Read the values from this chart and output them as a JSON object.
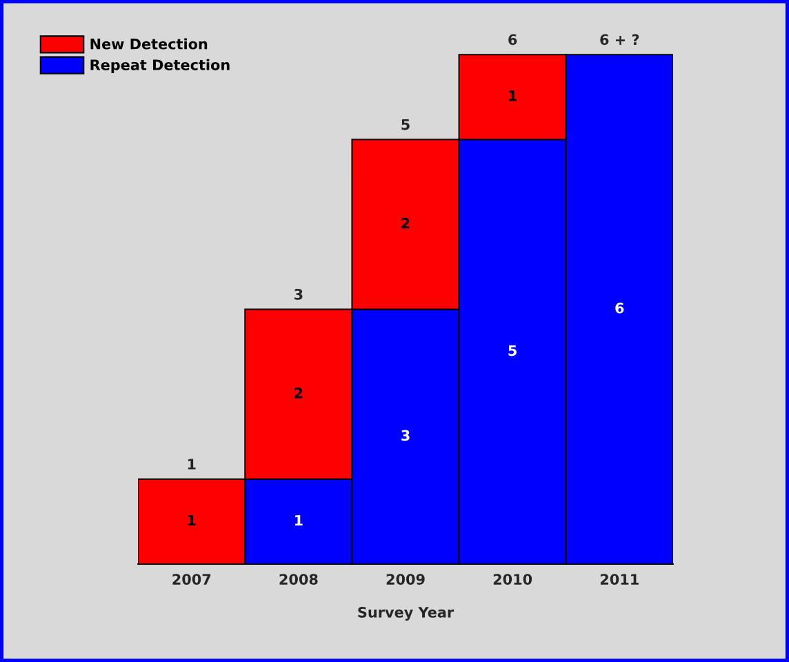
{
  "chart_data": {
    "type": "bar",
    "stacked": true,
    "xlabel": "Survey Year",
    "categories": [
      "2007",
      "2008",
      "2009",
      "2010",
      "2011"
    ],
    "series": [
      {
        "name": "Repeat Detection",
        "color": "#0000ff",
        "values": [
          0,
          1,
          3,
          5,
          6
        ],
        "value_labels": [
          null,
          "1",
          "3",
          "5",
          "6"
        ]
      },
      {
        "name": "New Detection",
        "color": "#ff0000",
        "values": [
          1,
          2,
          2,
          1,
          null
        ],
        "value_labels": [
          "1",
          "2",
          "2",
          "1",
          null
        ]
      }
    ],
    "totals": [
      "1",
      "3",
      "5",
      "6",
      "6 + ?"
    ],
    "tick_labels": "x",
    "legend": "top left",
    "grid": false
  }
}
